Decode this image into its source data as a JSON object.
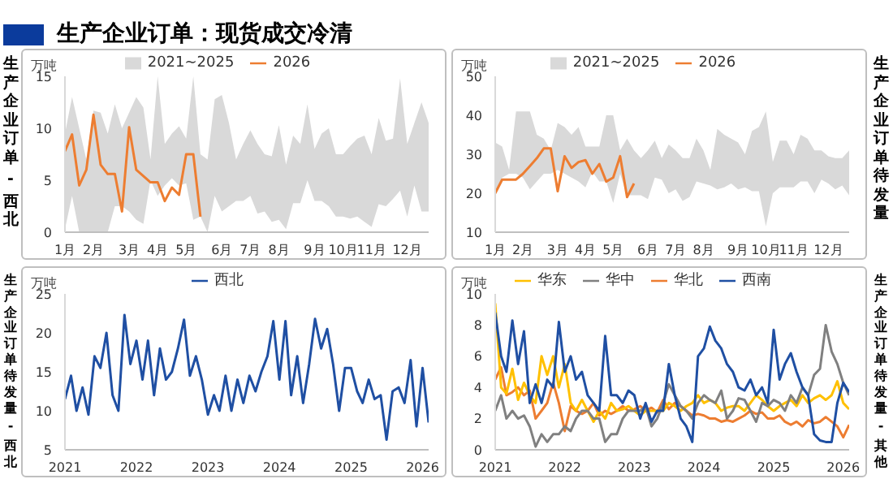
{
  "chart_data": [
    {
      "type": "other",
      "title": "生产企业订单：现货成交冷清"
    },
    {
      "type": "line",
      "title": "生产企业订单 - 西北",
      "ylabel": "万吨",
      "legend": "top",
      "categories": [
        "1月",
        null,
        null,
        null,
        "2月",
        null,
        null,
        null,
        null,
        "3月",
        null,
        null,
        null,
        "4月",
        null,
        null,
        null,
        "5月",
        null,
        null,
        null,
        null,
        "6月",
        null,
        null,
        null,
        "7月",
        null,
        null,
        null,
        "8月",
        null,
        null,
        null,
        null,
        "9月",
        null,
        null,
        null,
        "10月",
        null,
        null,
        null,
        "11月",
        null,
        null,
        null,
        null,
        "12月",
        null,
        null,
        null
      ],
      "ylim": [
        0,
        15
      ],
      "yticks": [
        0,
        5,
        10,
        15
      ],
      "series": [
        {
          "name": "2021~2025",
          "type": "area",
          "color": "#d9d9d9",
          "values": [
            null,
            null,
            null,
            null,
            null,
            null,
            null,
            null,
            null,
            null,
            null,
            null,
            null,
            null,
            null,
            null,
            null,
            null,
            null,
            null,
            null,
            null,
            null,
            null,
            null,
            null,
            null,
            null,
            null,
            null,
            null,
            null,
            null,
            null,
            null,
            null,
            null,
            null,
            null,
            null,
            null,
            null,
            null,
            null,
            null,
            null,
            null,
            null,
            null,
            null,
            null,
            null
          ],
          "lower": [
            0.3,
            3.5,
            0,
            0,
            0,
            0,
            0,
            2.5,
            2.5,
            2,
            1.2,
            0.8,
            5,
            3.5,
            4.5,
            5.2,
            4.5,
            4.7,
            1.2,
            1.5,
            0,
            3.5,
            2,
            2.5,
            3,
            3,
            3.5,
            1.8,
            2,
            1,
            1.2,
            0.3,
            2.8,
            2.8,
            5,
            3,
            3,
            2.5,
            1.5,
            1.5,
            1.3,
            1.5,
            1,
            0.5,
            2.7,
            2.5,
            3.2,
            4,
            1.5,
            4.5,
            2,
            2
          ],
          "upper": [
            9.5,
            13,
            10,
            7,
            11.7,
            11.5,
            9.5,
            12.3,
            10,
            11.5,
            13,
            12,
            7,
            15,
            8.5,
            9.5,
            10.2,
            9,
            15,
            7.5,
            7,
            12.8,
            13.2,
            10.5,
            7,
            8.5,
            9.8,
            8.5,
            7.5,
            7.3,
            10.3,
            6.5,
            9.3,
            8.5,
            12.3,
            8,
            9.5,
            10,
            7.5,
            7.5,
            8.3,
            9,
            9.3,
            7.5,
            11,
            8.8,
            9,
            14.8,
            8.5,
            10.5,
            12.5,
            10.5
          ]
        },
        {
          "name": "2026",
          "color": "#ed7d31",
          "values": [
            7.8,
            9.4,
            4.5,
            6,
            11.3,
            6.5,
            5.6,
            5.6,
            2,
            10.1,
            6,
            5.4,
            4.8,
            4.8,
            3,
            4.3,
            3.6,
            7.5,
            7.5,
            1.5,
            null,
            null,
            null,
            null,
            null,
            null,
            null,
            null,
            null,
            null,
            null,
            null,
            null,
            null,
            null,
            null,
            null,
            null,
            null,
            null,
            null,
            null,
            null,
            null,
            null,
            null,
            null,
            null,
            null,
            null,
            null,
            null
          ]
        }
      ]
    },
    {
      "type": "line",
      "title": "生产企业订单待发量",
      "ylabel": "万吨",
      "legend": "top",
      "categories": [
        "1月",
        null,
        null,
        null,
        "2月",
        null,
        null,
        null,
        null,
        "3月",
        null,
        null,
        null,
        "4月",
        null,
        null,
        null,
        "5月",
        null,
        null,
        null,
        null,
        "6月",
        null,
        null,
        null,
        "7月",
        null,
        null,
        null,
        "8月",
        null,
        null,
        null,
        null,
        "9月",
        null,
        null,
        null,
        "10月",
        null,
        null,
        null,
        "11月",
        null,
        null,
        null,
        null,
        "12月",
        null,
        null,
        null
      ],
      "ylim": [
        10,
        50
      ],
      "yticks": [
        10,
        20,
        30,
        40,
        50
      ],
      "series": [
        {
          "name": "2021~2025",
          "type": "area",
          "color": "#d9d9d9",
          "values": [
            null,
            null,
            null,
            null,
            null,
            null,
            null,
            null,
            null,
            null,
            null,
            null,
            null,
            null,
            null,
            null,
            null,
            null,
            null,
            null,
            null,
            null,
            null,
            null,
            null,
            null,
            null,
            null,
            null,
            null,
            null,
            null,
            null,
            null,
            null,
            null,
            null,
            null,
            null,
            null,
            null,
            null,
            null,
            null,
            null,
            null,
            null,
            null,
            null,
            null,
            null,
            null
          ],
          "lower": [
            20,
            24,
            25,
            25,
            24,
            21,
            23,
            25,
            25,
            26,
            25,
            24,
            23,
            21.5,
            25.5,
            23,
            23,
            17.5,
            25,
            19.5,
            19.5,
            19.5,
            18.5,
            24,
            23.5,
            20,
            21,
            18,
            19,
            23,
            22.5,
            22,
            21,
            21.5,
            22.5,
            21,
            21.5,
            20.5,
            20.5,
            11.5,
            20,
            21.5,
            21.5,
            21.5,
            23,
            23,
            20,
            23.5,
            22.5,
            21,
            22,
            19.5
          ],
          "upper": [
            33,
            32,
            26,
            41,
            41,
            41,
            35,
            34,
            31,
            38,
            37,
            35,
            37,
            32,
            32,
            32,
            40,
            40,
            31,
            34,
            31,
            29,
            31,
            33.5,
            29,
            32.5,
            31,
            29,
            29,
            34,
            31,
            26,
            36.5,
            35,
            34,
            33,
            30,
            36,
            37,
            41,
            28,
            33.5,
            33.5,
            30,
            35,
            34,
            31,
            31,
            29.5,
            29,
            29,
            31
          ]
        },
        {
          "name": "2026",
          "color": "#ed7d31",
          "values": [
            20,
            23.5,
            23.5,
            23.5,
            25,
            27,
            29,
            31.5,
            31.5,
            20.5,
            29.5,
            26.5,
            28,
            28.5,
            25,
            27.5,
            23,
            24,
            29.5,
            19,
            22.5,
            null,
            null,
            null,
            null,
            null,
            null,
            null,
            null,
            null,
            null,
            null,
            null,
            null,
            null,
            null,
            null,
            null,
            null,
            null,
            null,
            null,
            null,
            null,
            null,
            null,
            null,
            null,
            null,
            null,
            null,
            null
          ]
        }
      ]
    },
    {
      "type": "line",
      "title": "生产企业订单待发量 - 西北",
      "ylabel": "万吨",
      "legend": "top",
      "x": [
        "2021-01",
        "2021-02",
        "2021-03",
        "2021-04",
        "2021-05",
        "2021-06",
        "2021-07",
        "2021-08",
        "2021-09",
        "2021-10",
        "2021-11",
        "2021-12",
        "2022-01",
        "2022-02",
        "2022-03",
        "2022-04",
        "2022-05",
        "2022-06",
        "2022-07",
        "2022-08",
        "2022-09",
        "2022-10",
        "2022-11",
        "2022-12",
        "2023-01",
        "2023-02",
        "2023-03",
        "2023-04",
        "2023-05",
        "2023-06",
        "2023-07",
        "2023-08",
        "2023-09",
        "2023-10",
        "2023-11",
        "2023-12",
        "2024-01",
        "2024-02",
        "2024-03",
        "2024-04",
        "2024-05",
        "2024-06",
        "2024-07",
        "2024-08",
        "2024-09",
        "2024-10",
        "2024-11",
        "2024-12",
        "2025-01",
        "2025-02",
        "2025-03",
        "2025-04",
        "2025-05",
        "2025-06",
        "2025-07",
        "2025-08",
        "2025-09",
        "2025-10",
        "2025-11",
        "2025-12",
        "2026-01",
        "2026-02"
      ],
      "xlim": [
        "2021-01",
        "2026-02"
      ],
      "xticks": [
        "2021",
        "2022",
        "2023",
        "2024",
        "2025",
        "2026"
      ],
      "ylim": [
        5,
        25
      ],
      "yticks": [
        5,
        10,
        15,
        20,
        25
      ],
      "series": [
        {
          "name": "西北",
          "color": "#1f4fa3",
          "values": [
            11.5,
            14.5,
            10,
            13,
            9.5,
            17,
            15.5,
            20,
            12,
            10,
            22.3,
            16,
            19,
            14,
            19,
            12,
            18,
            14,
            15,
            18,
            21.7,
            14.5,
            17,
            14,
            9.5,
            12,
            10,
            14.5,
            10,
            14,
            11,
            14.5,
            12.5,
            15,
            17,
            21.5,
            14,
            21.5,
            12,
            17,
            11,
            16,
            21.8,
            18,
            20.5,
            16,
            10,
            15.5,
            15.5,
            12.5,
            11,
            14,
            11.5,
            12,
            6.3,
            12.5,
            13,
            11,
            16.5,
            8,
            15.5,
            8.5
          ]
        }
      ]
    },
    {
      "type": "line",
      "title": "生产企业订单待发量 - 其他",
      "ylabel": "万吨",
      "legend": "top",
      "x": [
        "2021-01",
        "2021-02",
        "2021-03",
        "2021-04",
        "2021-05",
        "2021-06",
        "2021-07",
        "2021-08",
        "2021-09",
        "2021-10",
        "2021-11",
        "2021-12",
        "2022-01",
        "2022-02",
        "2022-03",
        "2022-04",
        "2022-05",
        "2022-06",
        "2022-07",
        "2022-08",
        "2022-09",
        "2022-10",
        "2022-11",
        "2022-12",
        "2023-01",
        "2023-02",
        "2023-03",
        "2023-04",
        "2023-05",
        "2023-06",
        "2023-07",
        "2023-08",
        "2023-09",
        "2023-10",
        "2023-11",
        "2023-12",
        "2024-01",
        "2024-02",
        "2024-03",
        "2024-04",
        "2024-05",
        "2024-06",
        "2024-07",
        "2024-08",
        "2024-09",
        "2024-10",
        "2024-11",
        "2024-12",
        "2025-01",
        "2025-02",
        "2025-03",
        "2025-04",
        "2025-05",
        "2025-06",
        "2025-07",
        "2025-08",
        "2025-09",
        "2025-10",
        "2025-11",
        "2025-12",
        "2026-01",
        "2026-02"
      ],
      "xlim": [
        "2021-01",
        "2026-02"
      ],
      "xticks": [
        "2021",
        "2022",
        "2023",
        "2024",
        "2025",
        "2026"
      ],
      "ylim": [
        0,
        10
      ],
      "yticks": [
        0,
        2,
        4,
        6,
        8,
        10
      ],
      "series": [
        {
          "name": "华北",
          "color": "#ed7d31",
          "values": [
            4.5,
            5.3,
            3.5,
            3.7,
            4,
            3.5,
            3.8,
            2,
            2.5,
            3,
            4.3,
            3,
            1.2,
            2.8,
            2.5,
            2.3,
            2.5,
            3,
            2.2,
            2.5,
            2.3,
            2.5,
            2.8,
            2.5,
            2.6,
            2.8,
            2.5,
            2.7,
            2.4,
            3.2,
            2.6,
            3,
            2.8,
            2.5,
            2.2,
            2.3,
            2.2,
            2,
            2,
            1.8,
            1.9,
            1.8,
            2,
            2.2,
            2.5,
            2.3,
            2.4,
            2,
            2,
            2.2,
            1.8,
            1.6,
            1.8,
            1.5,
            1.9,
            1.7,
            1.8,
            2.1,
            1.8,
            1.5,
            0.8,
            1.6
          ]
        },
        {
          "name": "华东",
          "color": "#ffc000",
          "values": [
            9.4,
            4,
            3.6,
            5.2,
            3.2,
            4.3,
            3.5,
            3,
            6,
            4.8,
            6,
            4,
            5.5,
            3,
            2.5,
            3.2,
            2.5,
            1.8,
            2.5,
            2,
            3,
            2.5,
            2.6,
            2.8,
            2.5,
            2.2,
            2.5,
            2.5,
            2.5,
            2.5,
            3,
            2.8,
            2.5,
            2.8,
            3,
            3.5,
            3,
            3.2,
            3,
            2.5,
            2.7,
            2.8,
            2.8,
            2.5,
            3,
            3.5,
            3.2,
            2.8,
            2.5,
            2.8,
            3,
            3.2,
            2.8,
            3.5,
            3,
            3.3,
            3.5,
            3.2,
            3.5,
            4.4,
            3,
            2.6
          ]
        },
        {
          "name": "华中",
          "color": "#808080",
          "values": [
            2.5,
            3.5,
            2,
            2.5,
            2,
            2.2,
            1.5,
            0.2,
            1,
            0.5,
            1,
            1,
            1.5,
            1.2,
            2,
            2.5,
            2.5,
            2,
            2,
            0.5,
            1,
            1,
            2,
            2.5,
            2.5,
            2.5,
            2.8,
            1.5,
            2,
            3,
            4.2,
            3.5,
            2.8,
            2.5,
            2,
            3,
            3.5,
            3.2,
            3,
            3.8,
            2,
            2.5,
            3.3,
            3.2,
            2.5,
            1.8,
            3,
            2.8,
            3.2,
            3,
            2.5,
            3.5,
            3,
            4,
            3.5,
            4.8,
            5.2,
            8,
            6.3,
            5.5,
            4.3,
            3.5
          ]
        },
        {
          "name": "西南",
          "color": "#1f4fa3",
          "values": [
            8.8,
            6,
            5,
            8.3,
            5.5,
            7.6,
            3,
            4.2,
            3,
            4.5,
            4,
            8.2,
            5,
            6,
            4.5,
            5,
            3.5,
            3,
            2.5,
            7.3,
            3.5,
            3.5,
            3,
            3.8,
            3.5,
            2,
            3,
            1.8,
            2.5,
            2.5,
            5.5,
            3.5,
            2,
            1.5,
            0.5,
            6,
            6.5,
            7.9,
            7,
            6.5,
            5.5,
            5,
            4,
            3.8,
            4.5,
            3.5,
            4,
            3,
            7.7,
            4.5,
            5.5,
            6.2,
            5,
            4,
            3.5,
            1,
            0.6,
            0.5,
            0.5,
            3,
            4.3,
            3.7
          ]
        }
      ]
    }
  ]
}
